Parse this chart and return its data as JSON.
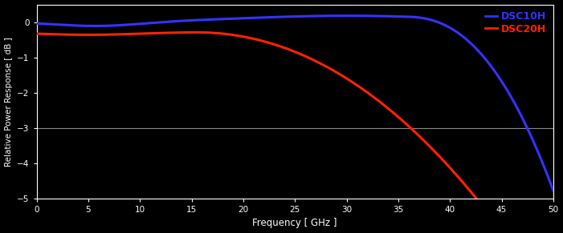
{
  "background_color": "#000000",
  "plot_bg_color": "#000000",
  "axes_color": "#ffffff",
  "grid_color": "#888888",
  "xlabel": "Frequency [ GHz ]",
  "ylabel": "Relative Power Response [ dB ]",
  "xlabel_color": "#ffffff",
  "ylabel_color": "#ffffff",
  "tick_color": "#ffffff",
  "xlim": [
    0,
    50
  ],
  "ylim": [
    -5,
    0.5
  ],
  "yticks": [
    0,
    -1,
    -2,
    -3,
    -4,
    -5
  ],
  "xticks": [
    0,
    5,
    10,
    15,
    20,
    25,
    30,
    35,
    40,
    45,
    50
  ],
  "dsc10h_color": "#3333ff",
  "dsc20h_color": "#ff2200",
  "legend_labels": [
    "DSC10H",
    "DSC20H"
  ],
  "legend_colors": [
    "#3333ff",
    "#ff2200"
  ],
  "linewidth": 2.2,
  "grid_y": -3
}
